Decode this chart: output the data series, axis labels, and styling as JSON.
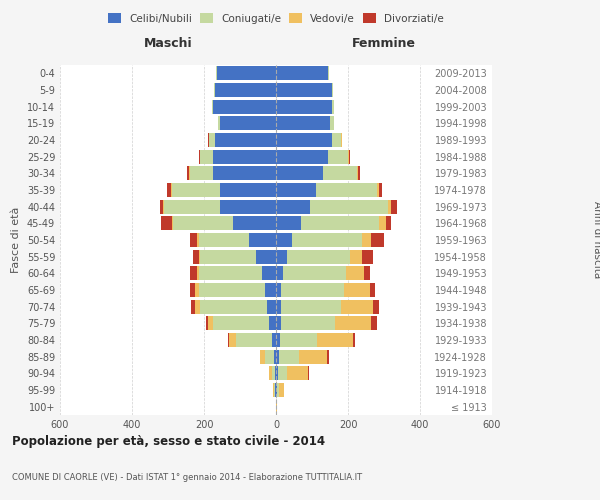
{
  "age_groups": [
    "100+",
    "95-99",
    "90-94",
    "85-89",
    "80-84",
    "75-79",
    "70-74",
    "65-69",
    "60-64",
    "55-59",
    "50-54",
    "45-49",
    "40-44",
    "35-39",
    "30-34",
    "25-29",
    "20-24",
    "15-19",
    "10-14",
    "5-9",
    "0-4"
  ],
  "birth_years": [
    "≤ 1913",
    "1914-1918",
    "1919-1923",
    "1924-1928",
    "1929-1933",
    "1934-1938",
    "1939-1943",
    "1944-1948",
    "1949-1953",
    "1954-1958",
    "1959-1963",
    "1964-1968",
    "1969-1973",
    "1974-1978",
    "1979-1983",
    "1984-1988",
    "1989-1993",
    "1994-1998",
    "1999-2003",
    "2004-2008",
    "2009-2013"
  ],
  "colors": {
    "celibi": "#4472c4",
    "coniugati": "#c5d9a0",
    "vedovi": "#f0c060",
    "divorziati": "#c0392b"
  },
  "males": {
    "celibi": [
      0,
      2,
      3,
      5,
      10,
      20,
      25,
      30,
      40,
      55,
      75,
      120,
      155,
      155,
      175,
      175,
      170,
      155,
      175,
      170,
      165
    ],
    "coniugati": [
      1,
      3,
      8,
      25,
      100,
      155,
      185,
      185,
      175,
      155,
      140,
      165,
      155,
      135,
      65,
      35,
      15,
      5,
      2,
      2,
      2
    ],
    "vedovi": [
      0,
      2,
      8,
      15,
      20,
      15,
      15,
      10,
      5,
      5,
      5,
      5,
      3,
      3,
      2,
      2,
      2,
      1,
      0,
      0,
      0
    ],
    "divorziati": [
      0,
      0,
      0,
      0,
      2,
      5,
      10,
      15,
      20,
      15,
      20,
      30,
      10,
      10,
      5,
      2,
      2,
      1,
      0,
      0,
      0
    ]
  },
  "females": {
    "celibi": [
      0,
      3,
      5,
      8,
      10,
      15,
      15,
      15,
      20,
      30,
      45,
      70,
      95,
      110,
      130,
      145,
      155,
      150,
      155,
      155,
      145
    ],
    "coniugati": [
      1,
      5,
      25,
      55,
      105,
      150,
      165,
      175,
      175,
      175,
      195,
      215,
      215,
      170,
      95,
      55,
      25,
      10,
      5,
      3,
      2
    ],
    "vedovi": [
      1,
      15,
      60,
      80,
      100,
      100,
      90,
      70,
      50,
      35,
      25,
      20,
      10,
      5,
      3,
      3,
      2,
      1,
      0,
      0,
      0
    ],
    "divorziati": [
      0,
      0,
      2,
      5,
      5,
      15,
      15,
      15,
      15,
      30,
      35,
      15,
      15,
      10,
      5,
      2,
      2,
      1,
      0,
      0,
      0
    ]
  },
  "xlim": 600,
  "title_main": "Popolazione per età, sesso e stato civile - 2014",
  "subtitle": "COMUNE DI CAORLE (VE) - Dati ISTAT 1° gennaio 2014 - Elaborazione TUTTITALIA.IT",
  "ylabel_left": "Fasce di età",
  "ylabel_right": "Anni di nascita",
  "xlabel_left": "Maschi",
  "xlabel_right": "Femmine",
  "bg_color": "#f5f5f5",
  "plot_bg": "#ffffff"
}
